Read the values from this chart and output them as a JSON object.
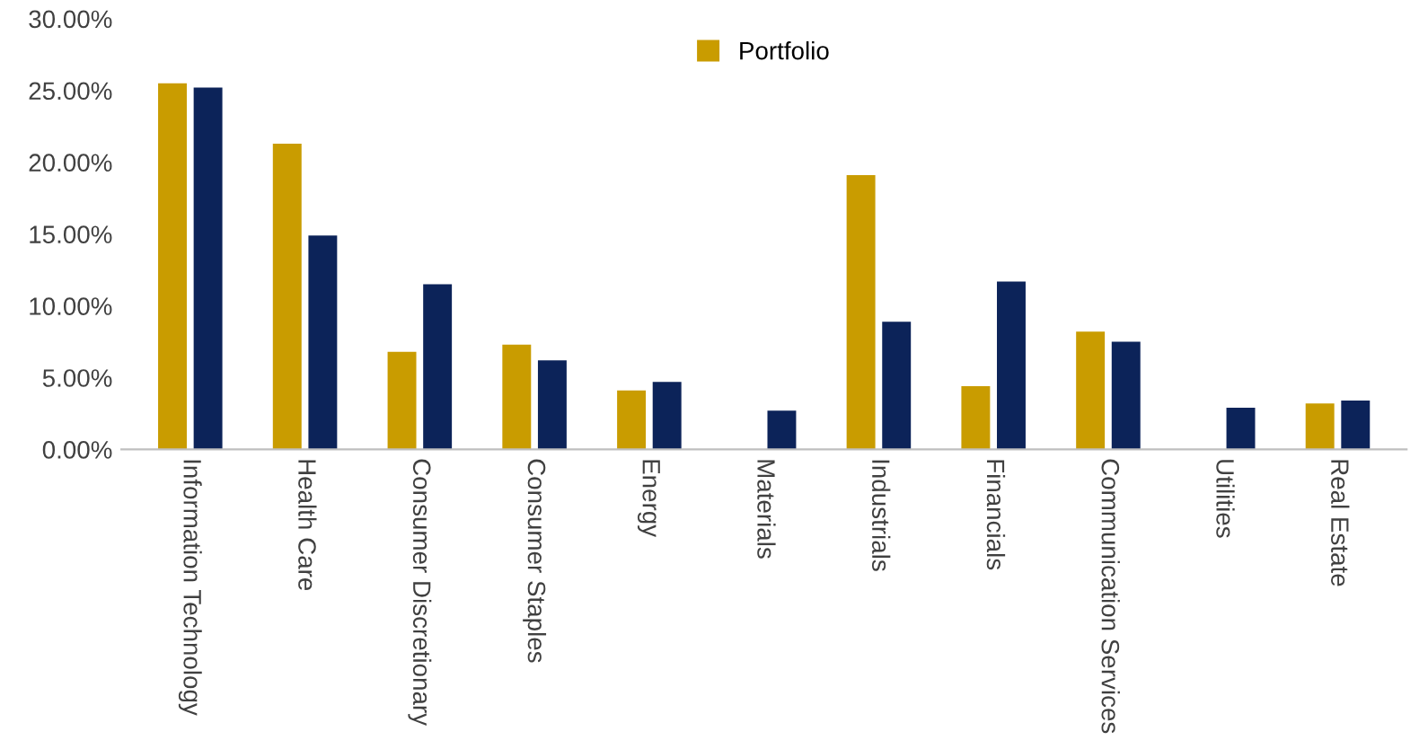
{
  "chart_data": {
    "type": "bar",
    "categories": [
      "Information Technology",
      "Health Care",
      "Consumer Discretionary",
      "Consumer Staples",
      "Energy",
      "Materials",
      "Industrials",
      "Financials",
      "Communication Services",
      "Utilities",
      "Real Estate"
    ],
    "series": [
      {
        "name": "Portfolio",
        "color": "#c99c00",
        "values": [
          25.5,
          21.3,
          6.8,
          7.3,
          4.1,
          null,
          19.1,
          4.4,
          8.2,
          null,
          3.2
        ]
      },
      {
        "color": "#0c2359",
        "values": [
          25.2,
          14.9,
          11.5,
          6.2,
          4.7,
          2.7,
          8.9,
          11.7,
          7.5,
          2.9,
          3.4
        ]
      }
    ],
    "ylim": [
      0,
      30
    ],
    "yticks": [
      {
        "value": 0,
        "label": "0.00%"
      },
      {
        "value": 5,
        "label": "5.00%"
      },
      {
        "value": 10,
        "label": "10.00%"
      },
      {
        "value": 15,
        "label": "15.00%"
      },
      {
        "value": 20,
        "label": "20.00%"
      },
      {
        "value": 25,
        "label": "25.00%"
      },
      {
        "value": 30,
        "label": "30.00%"
      }
    ],
    "grid": false,
    "legend": "top"
  }
}
